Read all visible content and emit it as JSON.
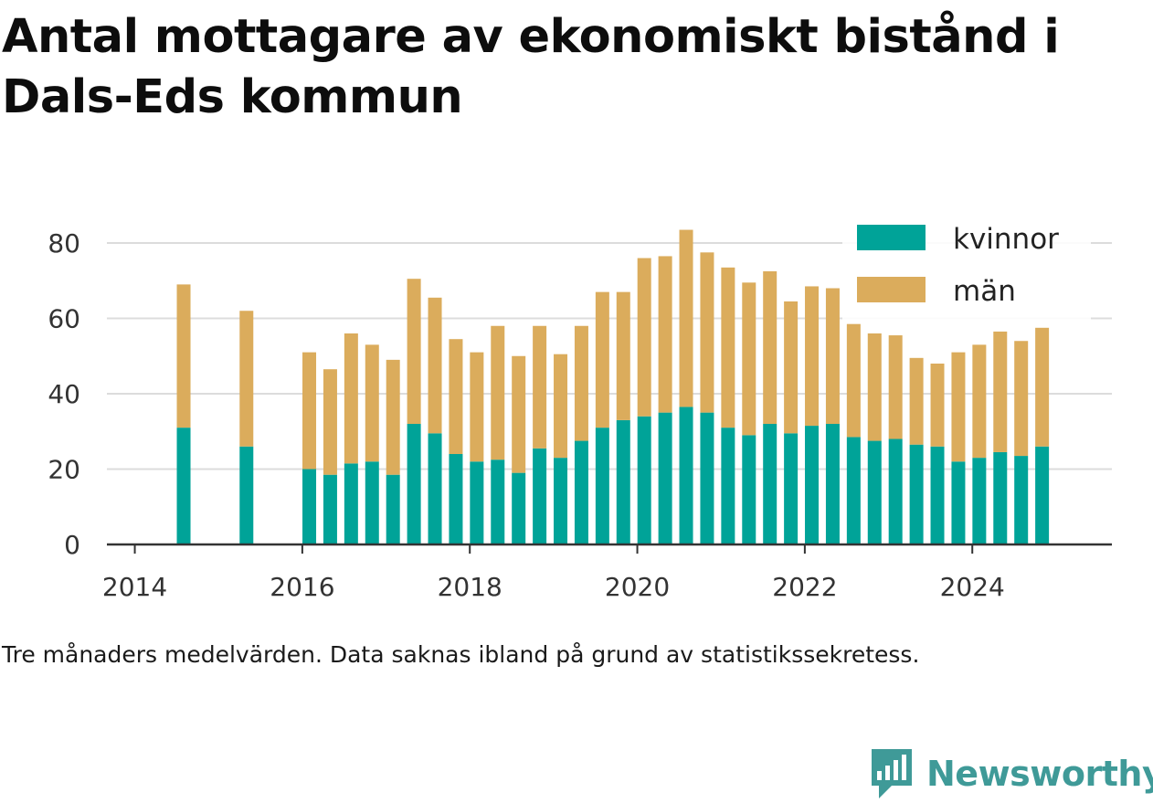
{
  "title": "Antal mottagare av ekonomiskt bistånd i Dals-Eds kommun",
  "note": "Tre månaders medelvärden. Data saknas ibland på grund av statistikssekretess.",
  "brand": {
    "name": "Newsworthy",
    "icon": "newsworthy-logo-icon",
    "color": "#3f9a98"
  },
  "chart_data": {
    "type": "bar",
    "stacked": true,
    "x_tick_labels": [
      "2014",
      "2016",
      "2018",
      "2020",
      "2022",
      "2024"
    ],
    "y_tick_labels": [
      "0",
      "20",
      "40",
      "60",
      "80"
    ],
    "ylim": [
      0,
      90
    ],
    "xlim": [
      "2013-09",
      "2025-09"
    ],
    "grid": true,
    "legend_position": "top-right",
    "x": [
      "2014-08",
      "2015-05",
      "2016-02",
      "2016-05",
      "2016-08",
      "2016-11",
      "2017-02",
      "2017-05",
      "2017-08",
      "2017-11",
      "2018-02",
      "2018-05",
      "2018-08",
      "2018-11",
      "2019-02",
      "2019-05",
      "2019-08",
      "2019-11",
      "2020-02",
      "2020-05",
      "2020-08",
      "2020-11",
      "2021-02",
      "2021-05",
      "2021-08",
      "2021-11",
      "2022-02",
      "2022-05",
      "2022-08",
      "2022-11",
      "2023-02",
      "2023-05",
      "2023-08",
      "2023-11",
      "2024-02",
      "2024-05",
      "2024-08",
      "2024-11"
    ],
    "series": [
      {
        "name": "kvinnor",
        "color": "#00a398",
        "values": [
          31,
          26,
          20,
          18.5,
          21.5,
          22,
          18.5,
          32,
          29.5,
          24,
          22,
          22.5,
          19,
          25.5,
          23,
          27.5,
          31,
          33,
          34,
          35,
          36.5,
          35,
          31,
          29,
          32,
          29.5,
          31.5,
          32,
          28.5,
          27.5,
          28,
          26.5,
          26,
          22,
          23,
          24.5,
          23.5,
          26
        ]
      },
      {
        "name": "män",
        "color": "#dbac5c",
        "values": [
          38,
          36,
          31,
          28,
          34.5,
          31,
          30.5,
          38.5,
          36,
          30.5,
          29,
          35.5,
          31,
          32.5,
          27.5,
          30.5,
          36,
          34,
          42,
          41.5,
          47,
          42.5,
          42.5,
          40.5,
          40.5,
          35,
          37,
          36,
          30,
          28.5,
          27.5,
          23,
          22,
          29,
          30,
          32,
          30.5,
          31.5
        ]
      }
    ]
  }
}
